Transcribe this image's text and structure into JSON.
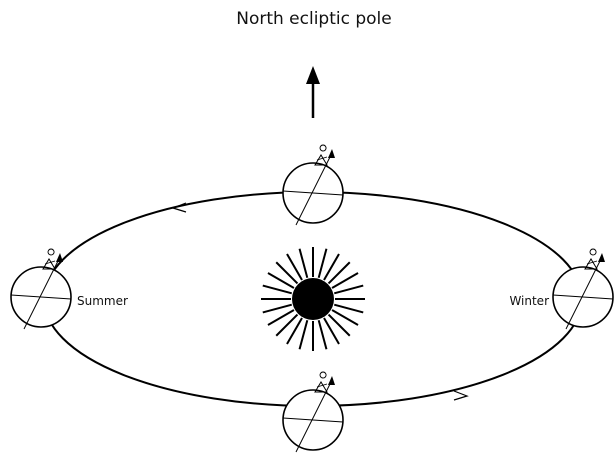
{
  "title": "North ecliptic pole",
  "labels": {
    "summer": "Summer",
    "winter": "Winter"
  }
}
